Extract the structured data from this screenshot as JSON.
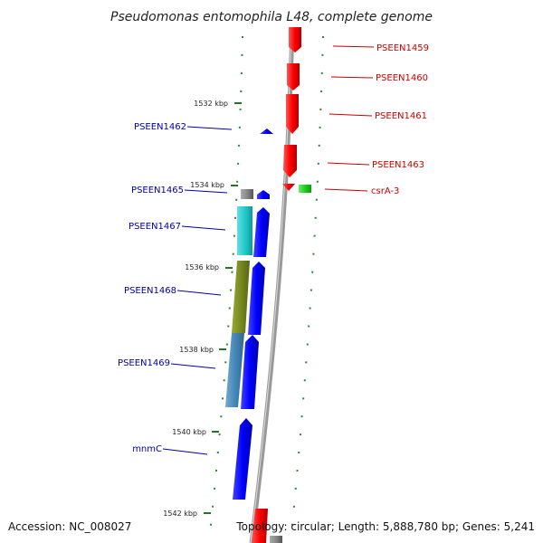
{
  "title": "Pseudomonas entomophila L48, complete genome",
  "footer": {
    "accession": "Accession: NC_008027",
    "topology": "Topology: circular; Length: 5,888,780 bp; Genes: 5,241"
  },
  "colors": {
    "forward_label": "#cc0000",
    "reverse_label": "#0000aa",
    "tick": "#227722",
    "backbone": "#999999"
  },
  "ticks": [
    "1532 kbp",
    "1534 kbp",
    "1536 kbp",
    "1538 kbp",
    "1540 kbp",
    "1542 kbp"
  ],
  "genes": {
    "forward": [
      {
        "label": "PSEEN1459",
        "color": "#ee0000"
      },
      {
        "label": "PSEEN1460",
        "color": "#ee0000"
      },
      {
        "label": "PSEEN1461",
        "color": "#ee0000"
      },
      {
        "label": "PSEEN1463",
        "color": "#ee0000"
      },
      {
        "label": "csrA-3",
        "color": "#ee0000"
      }
    ],
    "reverse": [
      {
        "label": "PSEEN1462",
        "color": "#0000ee"
      },
      {
        "label": "PSEEN1465",
        "color": "#0000ee"
      },
      {
        "label": "PSEEN1467",
        "color": "#0000ee"
      },
      {
        "label": "PSEEN1468",
        "color": "#0000ee"
      },
      {
        "label": "PSEEN1469",
        "color": "#0000ee"
      },
      {
        "label": "mnmC",
        "color": "#0000ee"
      }
    ]
  }
}
